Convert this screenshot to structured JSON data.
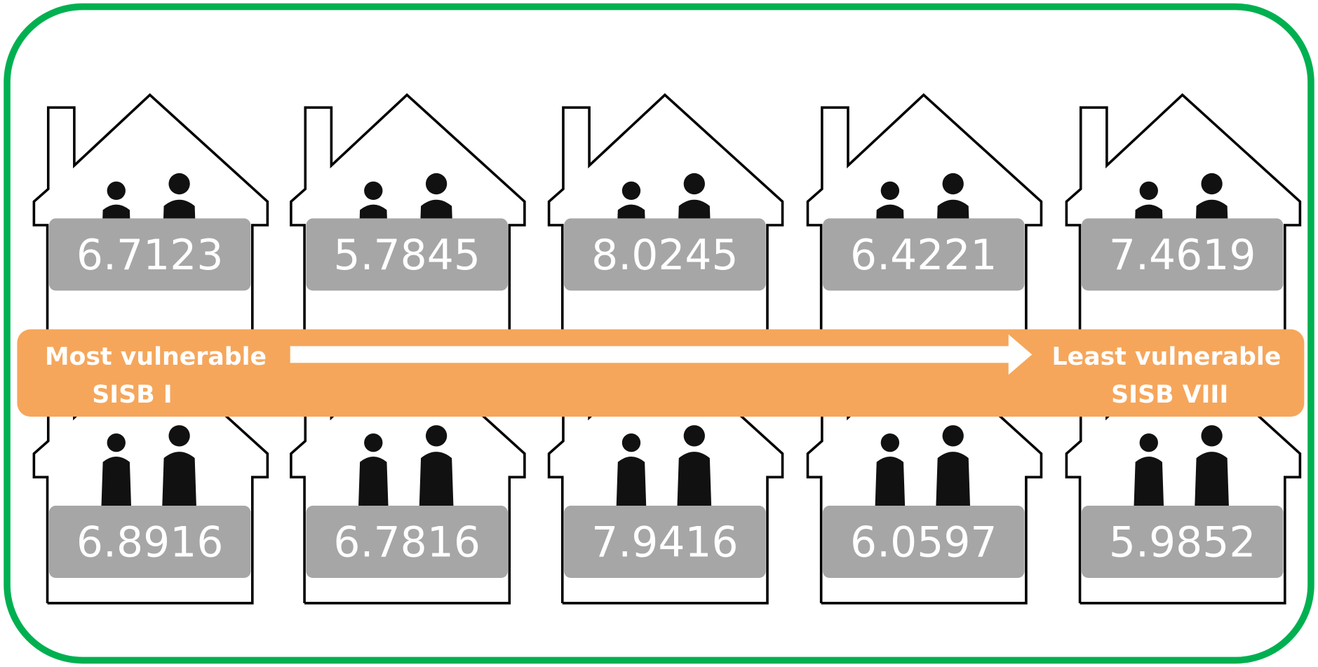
{
  "houses": {
    "top": [
      "6.7123",
      "5.7845",
      "8.0245",
      "6.4221",
      "7.4619"
    ],
    "bottom": [
      "6.8916",
      "6.7816",
      "7.9416",
      "6.0597",
      "5.9852"
    ]
  },
  "banner": {
    "left": [
      "Most vulnerable",
      "SISB I"
    ],
    "right": [
      "Least vulnerable",
      "SISB VIII"
    ]
  }
}
